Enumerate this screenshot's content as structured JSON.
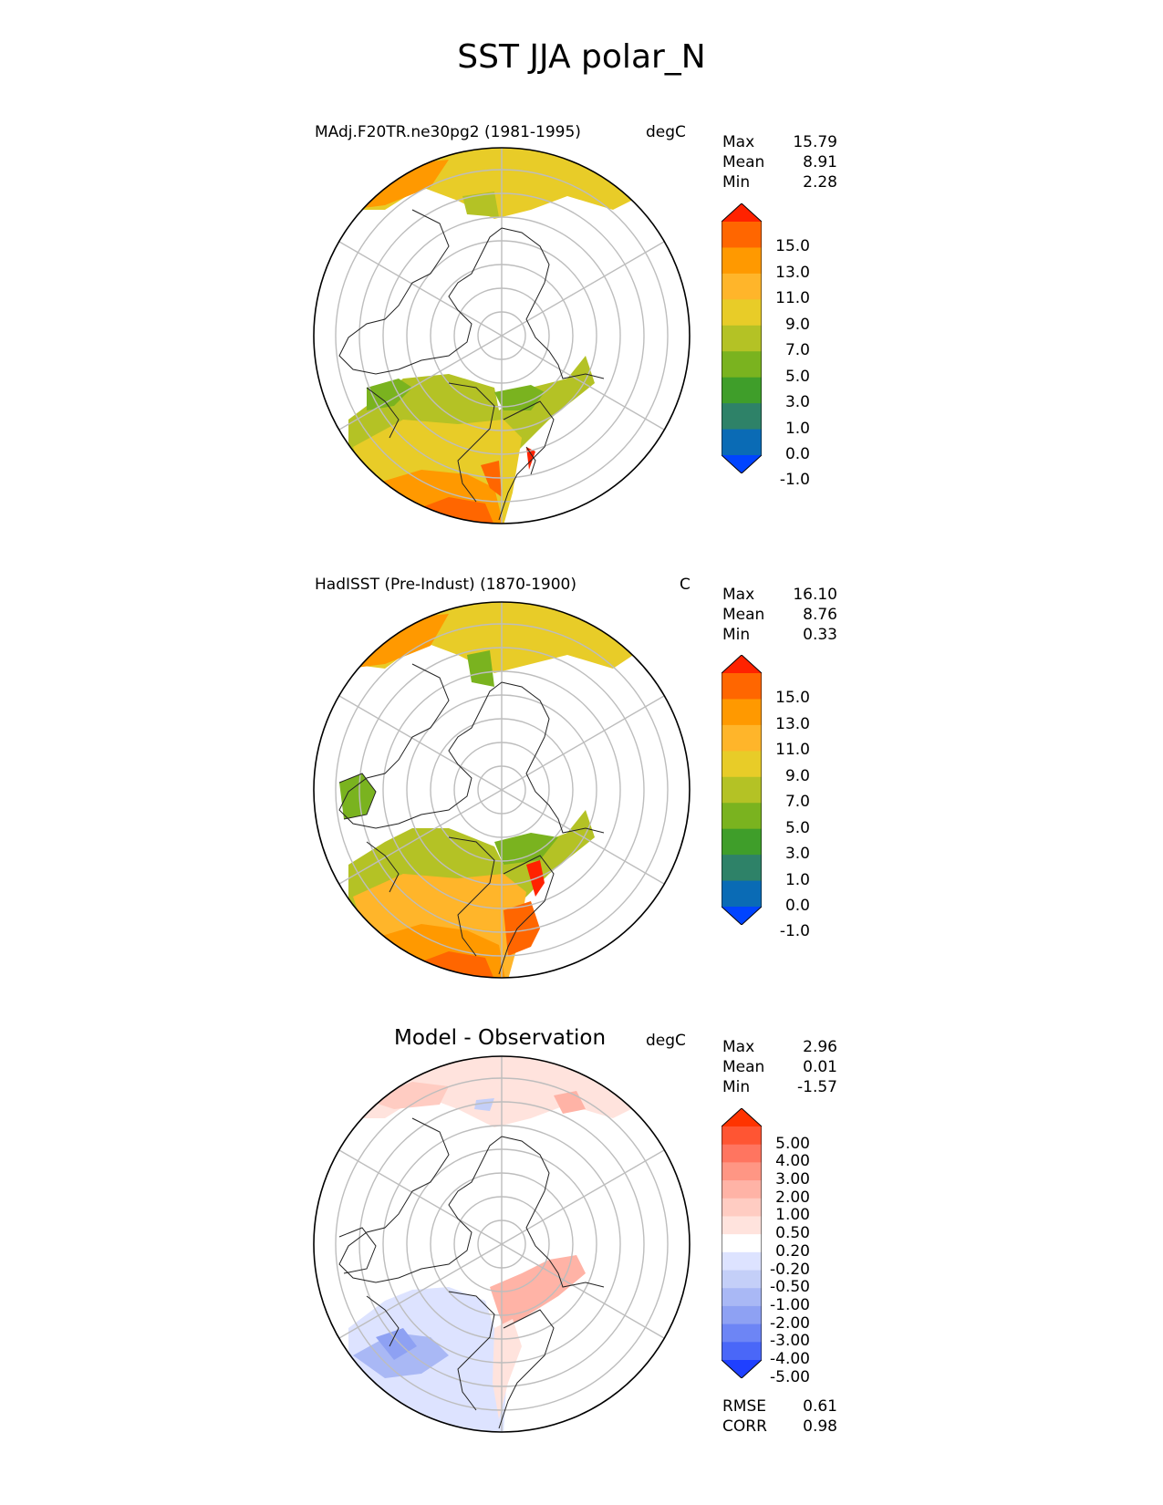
{
  "figure_title": "SST JJA polar_N",
  "panels": {
    "test": {
      "title": "MAdj.F20TR.ne30pg2 (1981-1995)",
      "units": "degC",
      "stats": [
        {
          "label": "Max",
          "value": "15.79"
        },
        {
          "label": "Mean",
          "value": "8.91"
        },
        {
          "label": "Min",
          "value": "2.28"
        }
      ]
    },
    "ref": {
      "title": "HadISST (Pre-Indust) (1870-1900)",
      "units": "C",
      "stats": [
        {
          "label": "Max",
          "value": "16.10"
        },
        {
          "label": "Mean",
          "value": "8.76"
        },
        {
          "label": "Min",
          "value": "0.33"
        }
      ]
    },
    "diff": {
      "title": "Model - Observation",
      "units": "degC",
      "stats": [
        {
          "label": "Max",
          "value": "2.96"
        },
        {
          "label": "Mean",
          "value": "0.01"
        },
        {
          "label": "Min",
          "value": "-1.57"
        }
      ],
      "metrics": [
        {
          "label": "RMSE",
          "value": "0.61"
        },
        {
          "label": "CORR",
          "value": "0.98"
        }
      ]
    }
  },
  "colorbars": {
    "sst": {
      "labels": [
        "15.0",
        "13.0",
        "11.0",
        "9.0",
        "7.0",
        "5.0",
        "3.0",
        "1.0",
        "0.0",
        "-1.0"
      ],
      "colors": [
        "#ff2200",
        "#ff6600",
        "#ff9900",
        "#ffb52a",
        "#e8cc28",
        "#b4c225",
        "#7ab31f",
        "#3f9e2a",
        "#2e8268",
        "#0a6bb5",
        "#0044ff"
      ]
    },
    "diff": {
      "labels": [
        "5.00",
        "4.00",
        "3.00",
        "2.00",
        "1.00",
        "0.50",
        "0.20",
        "-0.20",
        "-0.50",
        "-1.00",
        "-2.00",
        "-3.00",
        "-4.00",
        "-5.00"
      ],
      "colors": [
        "#ff3300",
        "#ff5533",
        "#ff7560",
        "#ff9684",
        "#ffb3a6",
        "#ffccc2",
        "#ffe3dd",
        "#ffffff",
        "#dde3ff",
        "#c4cff8",
        "#a9b8f5",
        "#8ea1f3",
        "#6d85f5",
        "#4a67f8",
        "#1f40ff"
      ]
    }
  },
  "chart_data": [
    {
      "type": "heatmap",
      "title": "MAdj.F20TR.ne30pg2 (1981-1995)",
      "variable": "SST",
      "season": "JJA",
      "region": "polar_N",
      "units": "degC",
      "stats": {
        "max": 15.79,
        "mean": 8.91,
        "min": 2.28
      },
      "colorbar_levels": [
        -1.0,
        0.0,
        1.0,
        3.0,
        5.0,
        7.0,
        9.0,
        11.0,
        13.0,
        15.0
      ]
    },
    {
      "type": "heatmap",
      "title": "HadISST (Pre-Indust) (1870-1900)",
      "variable": "SST",
      "season": "JJA",
      "region": "polar_N",
      "units": "C",
      "stats": {
        "max": 16.1,
        "mean": 8.76,
        "min": 0.33
      },
      "colorbar_levels": [
        -1.0,
        0.0,
        1.0,
        3.0,
        5.0,
        7.0,
        9.0,
        11.0,
        13.0,
        15.0
      ]
    },
    {
      "type": "heatmap",
      "title": "Model - Observation",
      "units": "degC",
      "stats": {
        "max": 2.96,
        "mean": 0.01,
        "min": -1.57
      },
      "metrics": {
        "rmse": 0.61,
        "corr": 0.98
      },
      "colorbar_levels": [
        -5.0,
        -4.0,
        -3.0,
        -2.0,
        -1.0,
        -0.5,
        -0.2,
        0.2,
        0.5,
        1.0,
        2.0,
        3.0,
        4.0,
        5.0
      ]
    }
  ]
}
